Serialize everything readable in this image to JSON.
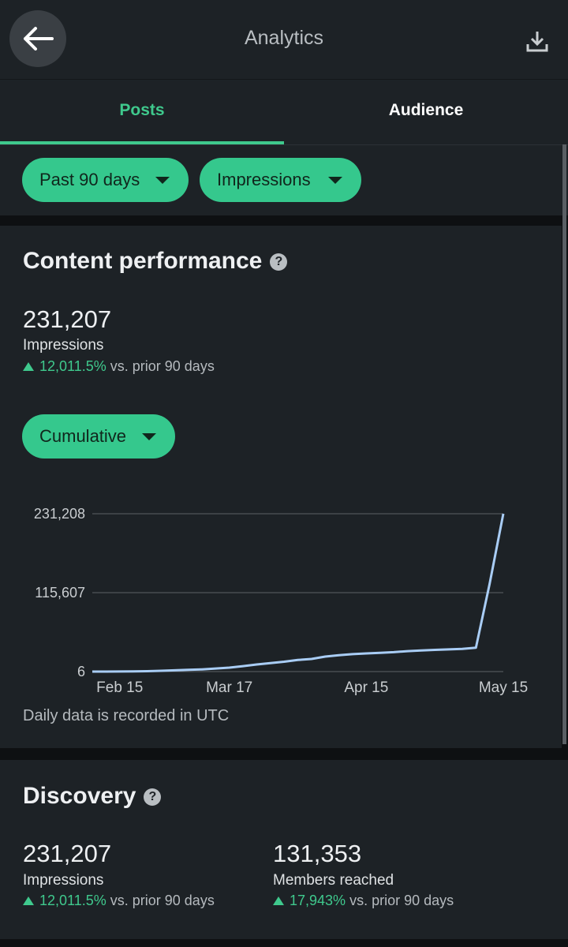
{
  "header": {
    "title": "Analytics"
  },
  "tabs": [
    "Posts",
    "Audience"
  ],
  "filters": [
    "Past 90 days",
    "Impressions"
  ],
  "content_performance": {
    "title": "Content performance",
    "total": "231,207",
    "metric": "Impressions",
    "change": "12,011.5%",
    "change_note": "vs. prior 90 days",
    "mode": "Cumulative",
    "note": "Daily data is recorded in UTC"
  },
  "chart_data": {
    "type": "line",
    "color": "#a9cdf5",
    "grid": true,
    "categories": [
      null,
      null,
      "Feb 15",
      null,
      null,
      null,
      null,
      null,
      null,
      null,
      "Mar 17",
      null,
      null,
      null,
      null,
      null,
      null,
      null,
      null,
      null,
      "Apr 15",
      null,
      null,
      null,
      null,
      null,
      null,
      null,
      null,
      null,
      "May 15"
    ],
    "values": [
      6,
      50,
      150,
      300,
      600,
      1200,
      1800,
      2500,
      3200,
      4500,
      5800,
      8000,
      10400,
      12500,
      14500,
      17000,
      18500,
      22000,
      24000,
      25500,
      26600,
      27500,
      28500,
      30000,
      31000,
      31800,
      32500,
      33200,
      35000,
      128300,
      231207
    ],
    "ylim": [
      6,
      231208
    ],
    "yticks": [
      {
        "value": 231208,
        "label": "231,208"
      },
      {
        "value": 115607,
        "label": "115,607"
      },
      6
    ]
  },
  "discovery": {
    "title": "Discovery",
    "stats": [
      {
        "value": "231,207",
        "label": "Impressions",
        "change": "12,011.5%",
        "change_note": "vs. prior 90 days"
      },
      {
        "value": "131,353",
        "label": "Members reached",
        "change": "17,943%",
        "change_note": "vs. prior 90 days"
      }
    ]
  }
}
